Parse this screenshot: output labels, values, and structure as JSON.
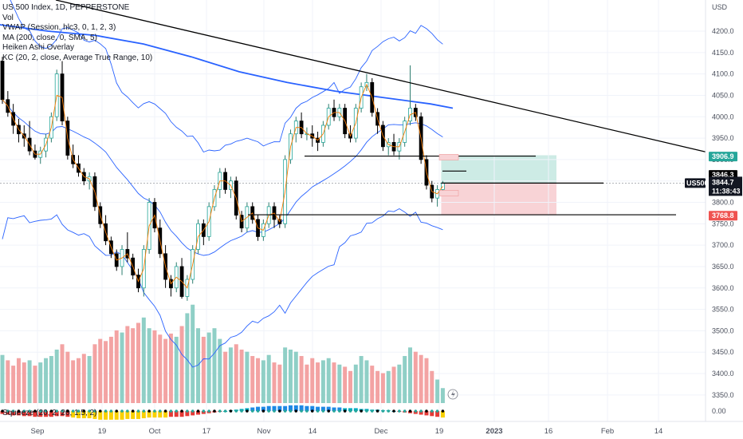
{
  "legend": {
    "symbol_line": "US 500 Index, 1D, PEPPERSTONE",
    "vol": "Vol",
    "vwap": "VWAP (Session, hlc3, 0, 1, 2, 3)",
    "ma": "MA (200, close, 0, SMA, 5)",
    "heikin": "Heiken Ashi Overlay",
    "kc": "KC (20, 2, close, Average True Range, 10)",
    "squeeze": "Squeeze (20, 2, 20, 1.5, 2)"
  },
  "axis": {
    "currency": "USD",
    "symbol_tag": "US500",
    "countdown": "11:38:43"
  },
  "price_tags": {
    "upper": "3906.9",
    "current_a": "3846.3",
    "current_b": "3844.7",
    "lower": "3768.8"
  },
  "colors": {
    "up": "#26a69a",
    "down": "#ef5350",
    "ma": "#2962ff",
    "band": "#2962ff",
    "vol_up": "#8fcfc6",
    "vol_down": "#f3a3a3",
    "black": "#000000",
    "target_zone": "#cdebe5",
    "stop_zone": "#f8d3d6",
    "ha_line": "#f57c00"
  },
  "chart_data": {
    "type": "candlestick",
    "title": "US 500 Index, 1D, PEPPERSTONE",
    "y_ticks": [
      4200,
      4150,
      4100,
      4050,
      4000,
      3950,
      3900,
      3850,
      3800,
      3750,
      3700,
      3650,
      3600,
      3550,
      3500,
      3450,
      3400,
      3350
    ],
    "ylim": [
      3320,
      4240
    ],
    "x_ticks": [
      "Sep",
      "19",
      "Oct",
      "17",
      "Nov",
      "14",
      "Dec",
      "19",
      "2023",
      "16",
      "Feb",
      "14"
    ],
    "squeeze_tick": "0.00",
    "ohlc": [
      [
        4130,
        4140,
        4030,
        4040
      ],
      [
        4040,
        4060,
        4000,
        4010
      ],
      [
        4010,
        4030,
        3960,
        3980
      ],
      [
        3980,
        3995,
        3940,
        3960
      ],
      [
        3960,
        3980,
        3930,
        3950
      ],
      [
        3950,
        3990,
        3910,
        3920
      ],
      [
        3920,
        3935,
        3900,
        3905
      ],
      [
        3905,
        3930,
        3890,
        3920
      ],
      [
        3920,
        3960,
        3905,
        3950
      ],
      [
        3950,
        4010,
        3940,
        4000
      ],
      [
        4000,
        4110,
        3990,
        4100
      ],
      [
        4100,
        4130,
        3980,
        3990
      ],
      [
        3990,
        4000,
        3900,
        3910
      ],
      [
        3910,
        3935,
        3880,
        3890
      ],
      [
        3890,
        3910,
        3860,
        3870
      ],
      [
        3870,
        3880,
        3840,
        3850
      ],
      [
        3850,
        3870,
        3830,
        3860
      ],
      [
        3860,
        3870,
        3780,
        3790
      ],
      [
        3790,
        3800,
        3740,
        3750
      ],
      [
        3750,
        3770,
        3700,
        3710
      ],
      [
        3710,
        3720,
        3670,
        3680
      ],
      [
        3680,
        3690,
        3640,
        3650
      ],
      [
        3650,
        3700,
        3630,
        3690
      ],
      [
        3690,
        3730,
        3660,
        3670
      ],
      [
        3670,
        3680,
        3620,
        3630
      ],
      [
        3630,
        3645,
        3590,
        3600
      ],
      [
        3600,
        3700,
        3580,
        3690
      ],
      [
        3690,
        3810,
        3680,
        3800
      ],
      [
        3800,
        3810,
        3730,
        3740
      ],
      [
        3740,
        3760,
        3670,
        3680
      ],
      [
        3680,
        3700,
        3600,
        3620
      ],
      [
        3620,
        3630,
        3580,
        3600
      ],
      [
        3600,
        3660,
        3590,
        3650
      ],
      [
        3650,
        3670,
        3575,
        3580
      ],
      [
        3580,
        3630,
        3570,
        3620
      ],
      [
        3620,
        3700,
        3610,
        3690
      ],
      [
        3690,
        3760,
        3680,
        3750
      ],
      [
        3750,
        3760,
        3700,
        3720
      ],
      [
        3720,
        3800,
        3710,
        3790
      ],
      [
        3790,
        3840,
        3780,
        3830
      ],
      [
        3830,
        3880,
        3810,
        3870
      ],
      [
        3870,
        3880,
        3820,
        3830
      ],
      [
        3830,
        3860,
        3810,
        3850
      ],
      [
        3850,
        3860,
        3760,
        3770
      ],
      [
        3770,
        3780,
        3730,
        3740
      ],
      [
        3740,
        3800,
        3730,
        3790
      ],
      [
        3790,
        3800,
        3750,
        3760
      ],
      [
        3760,
        3770,
        3710,
        3720
      ],
      [
        3720,
        3760,
        3710,
        3750
      ],
      [
        3750,
        3800,
        3740,
        3790
      ],
      [
        3790,
        3800,
        3740,
        3760
      ],
      [
        3760,
        3770,
        3740,
        3750
      ],
      [
        3750,
        3910,
        3740,
        3900
      ],
      [
        3900,
        3970,
        3890,
        3960
      ],
      [
        3960,
        4000,
        3940,
        3990
      ],
      [
        3990,
        4010,
        3950,
        3960
      ],
      [
        3960,
        3975,
        3945,
        3960
      ],
      [
        3960,
        3980,
        3930,
        3950
      ],
      [
        3950,
        3965,
        3920,
        3940
      ],
      [
        3940,
        3990,
        3930,
        3980
      ],
      [
        3980,
        4030,
        3970,
        4020
      ],
      [
        4020,
        4040,
        3990,
        4000
      ],
      [
        4000,
        4030,
        3990,
        4020
      ],
      [
        4020,
        4030,
        3950,
        3960
      ],
      [
        3960,
        3980,
        3940,
        3950
      ],
      [
        3950,
        4030,
        3940,
        4020
      ],
      [
        4020,
        4080,
        4010,
        4070
      ],
      [
        4070,
        4100,
        4060,
        4080
      ],
      [
        4080,
        4090,
        4000,
        4010
      ],
      [
        4010,
        4020,
        3960,
        3980
      ],
      [
        3980,
        3990,
        3920,
        3930
      ],
      [
        3930,
        3950,
        3910,
        3940
      ],
      [
        3940,
        3960,
        3910,
        3920
      ],
      [
        3920,
        3950,
        3900,
        3940
      ],
      [
        3940,
        4000,
        3930,
        3990
      ],
      [
        3990,
        4120,
        3980,
        4020
      ],
      [
        4020,
        4030,
        3990,
        4000
      ],
      [
        4000,
        4010,
        3890,
        3900
      ],
      [
        3900,
        3910,
        3830,
        3840
      ],
      [
        3840,
        3850,
        3800,
        3810
      ],
      [
        3810,
        3840,
        3790,
        3830
      ],
      [
        3830,
        3850,
        3820,
        3845
      ]
    ],
    "volume": [
      [
        45,
        1
      ],
      [
        40,
        0
      ],
      [
        35,
        0
      ],
      [
        42,
        0
      ],
      [
        38,
        0
      ],
      [
        40,
        1
      ],
      [
        35,
        0
      ],
      [
        38,
        1
      ],
      [
        42,
        1
      ],
      [
        44,
        1
      ],
      [
        50,
        1
      ],
      [
        55,
        0
      ],
      [
        48,
        0
      ],
      [
        40,
        0
      ],
      [
        42,
        0
      ],
      [
        46,
        0
      ],
      [
        44,
        1
      ],
      [
        55,
        0
      ],
      [
        60,
        0
      ],
      [
        58,
        0
      ],
      [
        62,
        0
      ],
      [
        68,
        0
      ],
      [
        66,
        1
      ],
      [
        72,
        0
      ],
      [
        70,
        0
      ],
      [
        75,
        0
      ],
      [
        80,
        1
      ],
      [
        70,
        1
      ],
      [
        68,
        0
      ],
      [
        64,
        0
      ],
      [
        60,
        0
      ],
      [
        65,
        0
      ],
      [
        62,
        1
      ],
      [
        72,
        0
      ],
      [
        84,
        1
      ],
      [
        92,
        1
      ],
      [
        70,
        1
      ],
      [
        62,
        0
      ],
      [
        66,
        1
      ],
      [
        70,
        1
      ],
      [
        60,
        1
      ],
      [
        48,
        0
      ],
      [
        52,
        1
      ],
      [
        55,
        0
      ],
      [
        50,
        0
      ],
      [
        48,
        1
      ],
      [
        44,
        0
      ],
      [
        42,
        0
      ],
      [
        40,
        1
      ],
      [
        45,
        1
      ],
      [
        38,
        0
      ],
      [
        36,
        0
      ],
      [
        52,
        1
      ],
      [
        50,
        1
      ],
      [
        48,
        1
      ],
      [
        44,
        0
      ],
      [
        36,
        0
      ],
      [
        42,
        0
      ],
      [
        38,
        0
      ],
      [
        40,
        1
      ],
      [
        42,
        1
      ],
      [
        38,
        0
      ],
      [
        36,
        1
      ],
      [
        34,
        0
      ],
      [
        30,
        0
      ],
      [
        36,
        1
      ],
      [
        44,
        1
      ],
      [
        40,
        1
      ],
      [
        35,
        0
      ],
      [
        30,
        0
      ],
      [
        28,
        0
      ],
      [
        30,
        1
      ],
      [
        34,
        0
      ],
      [
        36,
        1
      ],
      [
        44,
        1
      ],
      [
        52,
        1
      ],
      [
        48,
        0
      ],
      [
        45,
        0
      ],
      [
        42,
        0
      ],
      [
        30,
        0
      ],
      [
        22,
        1
      ],
      [
        14,
        1
      ]
    ],
    "squeeze": [
      -4,
      -5,
      -6,
      -6,
      -7,
      -7,
      -8,
      -8,
      -8,
      -8,
      -7,
      -7,
      -8,
      -9,
      -10,
      -10,
      -10,
      -11,
      -12,
      -12,
      -12,
      -12,
      -12,
      -11,
      -11,
      -11,
      -10,
      -9,
      -9,
      -9,
      -9,
      -8,
      -8,
      -8,
      -7,
      -6,
      -5,
      -4,
      -3,
      -2,
      -1,
      0,
      1,
      2,
      3,
      4,
      5,
      6,
      6,
      7,
      7,
      7,
      7,
      8,
      8,
      8,
      7,
      7,
      6,
      6,
      6,
      5,
      5,
      4,
      4,
      4,
      3,
      3,
      2,
      2,
      1,
      1,
      0,
      -1,
      -2,
      -3,
      -4,
      -5,
      -6,
      -7,
      -8,
      -9
    ]
  }
}
